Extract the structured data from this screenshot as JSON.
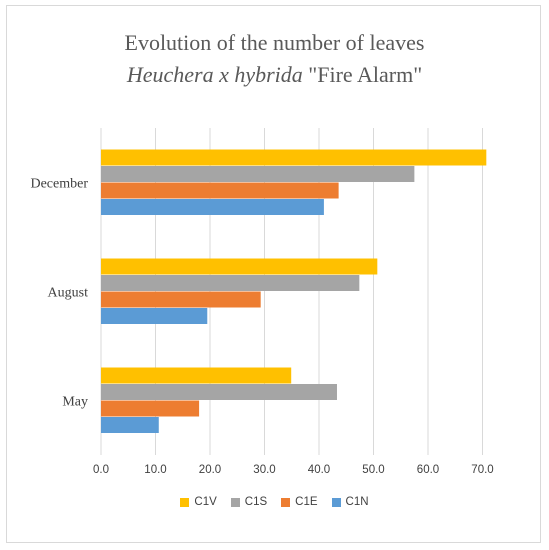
{
  "chart_data": {
    "type": "bar",
    "orientation": "horizontal",
    "title_line1": "Evolution of the number of leaves",
    "title_line2_italic": "Heuchera x hybrida",
    "title_line2_plain": "\"Fire Alarm\"",
    "categories": [
      "May",
      "August",
      "December"
    ],
    "series": [
      {
        "name": "C1V",
        "color": "#ffc000",
        "values": [
          34.9,
          50.7,
          70.7
        ]
      },
      {
        "name": "C1S",
        "color": "#a5a5a5",
        "values": [
          43.3,
          47.4,
          57.5
        ]
      },
      {
        "name": "C1E",
        "color": "#ed7d31",
        "values": [
          18.0,
          29.3,
          43.6
        ]
      },
      {
        "name": "C1N",
        "color": "#5b9bd5",
        "values": [
          10.6,
          19.5,
          40.9
        ]
      }
    ],
    "xlim": [
      0,
      75
    ],
    "xticks": [
      "0.0",
      "10.0",
      "20.0",
      "30.0",
      "40.0",
      "50.0",
      "60.0",
      "70.0"
    ],
    "grid": true,
    "legend_position": "bottom"
  }
}
